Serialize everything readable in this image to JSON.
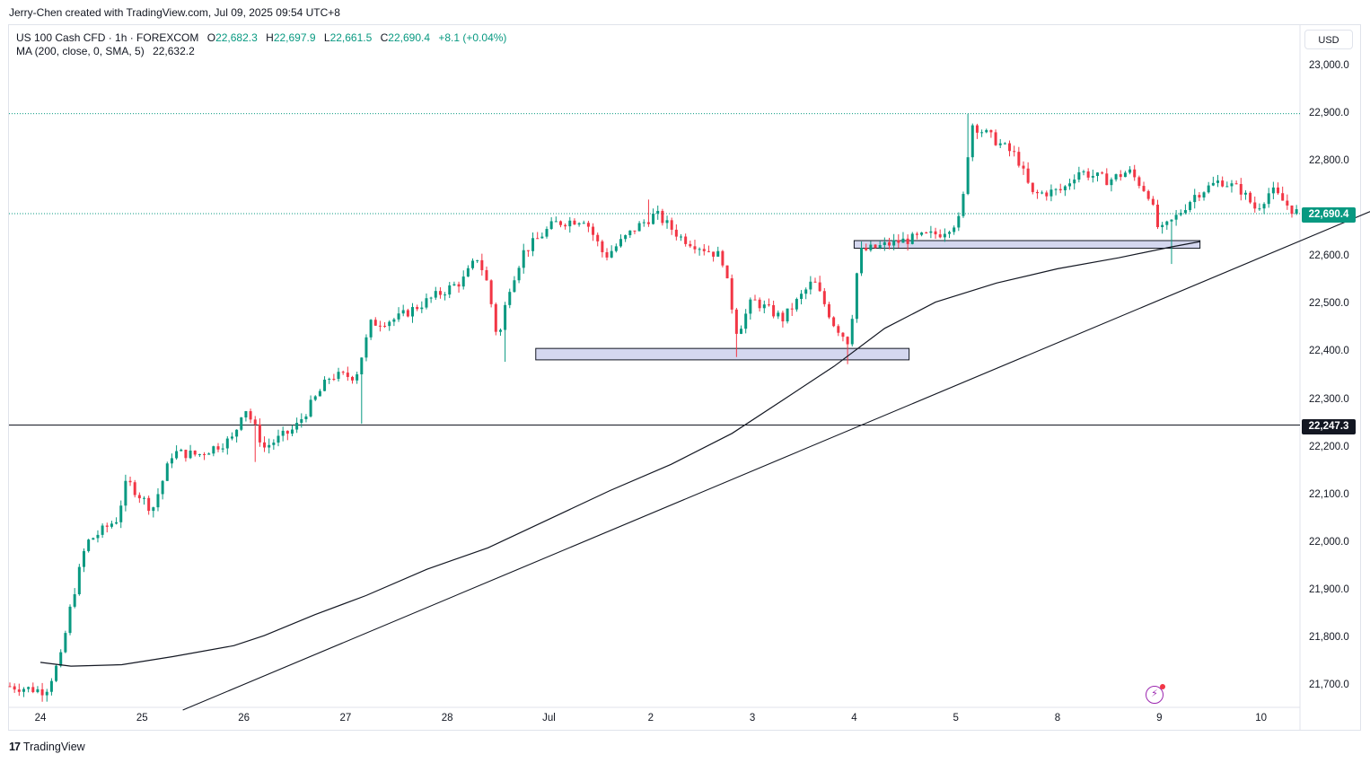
{
  "header": {
    "caption": "Jerry-Chen created with TradingView.com, Jul 09, 2025 09:54 UTC+8"
  },
  "legend": {
    "symbol": "US 100 Cash CFD · 1h · FOREXCOM",
    "o_label": "O",
    "o_value": "22,682.3",
    "h_label": "H",
    "h_value": "22,697.9",
    "l_label": "L",
    "l_value": "22,661.5",
    "c_label": "C",
    "c_value": "22,690.4",
    "change": "+8.1 (+0.04%)",
    "ma_label": "MA (200, close, 0, SMA, 5)",
    "ma_value": "22,632.2"
  },
  "currency": "USD",
  "price_badges": {
    "last": "22,690.4",
    "level": "22,247.3"
  },
  "y_axis": {
    "ticks": [
      {
        "value": 23000,
        "label": "23,000.0"
      },
      {
        "value": 22900,
        "label": "22,900.0"
      },
      {
        "value": 22800,
        "label": "22,800.0"
      },
      {
        "value": 22600,
        "label": "22,600.0"
      },
      {
        "value": 22500,
        "label": "22,500.0"
      },
      {
        "value": 22400,
        "label": "22,400.0"
      },
      {
        "value": 22300,
        "label": "22,300.0"
      },
      {
        "value": 22200,
        "label": "22,200.0"
      },
      {
        "value": 22100,
        "label": "22,100.0"
      },
      {
        "value": 22000,
        "label": "22,000.0"
      },
      {
        "value": 21900,
        "label": "21,900.0"
      },
      {
        "value": 21800,
        "label": "21,800.0"
      },
      {
        "value": 21700,
        "label": "21,700.0"
      }
    ]
  },
  "x_axis": {
    "ticks": [
      "24",
      "25",
      "26",
      "27",
      "28",
      "Jul",
      "2",
      "3",
      "4",
      "5",
      "8",
      "9",
      "10"
    ]
  },
  "footer": {
    "brand": "TradingView"
  },
  "colors": {
    "up": "#089981",
    "down": "#f23645",
    "ma": "#131722",
    "zone_fill": "#c5cae9",
    "zone_stroke": "#131722"
  },
  "chart_data": {
    "type": "candlestick",
    "title": "US 100 Cash CFD · 1h · FOREXCOM",
    "ylim": [
      21650,
      23060
    ],
    "last_price": 22690.4,
    "high_dotted": 22900,
    "horizontal_level": 22247.3,
    "trendline": {
      "from": {
        "x": 1.4,
        "y": 21650
      },
      "to": {
        "x": 13.8,
        "y": 22760
      }
    },
    "zones": [
      {
        "x0": 4.87,
        "x1": 8.54,
        "y0": 22384,
        "y1": 22408
      },
      {
        "x0": 8.0,
        "x1": 11.4,
        "y0": 22618,
        "y1": 22634
      }
    ],
    "ma200": [
      {
        "x": 0,
        "y": 21750
      },
      {
        "x": 0.3,
        "y": 21742
      },
      {
        "x": 0.8,
        "y": 21745
      },
      {
        "x": 1.3,
        "y": 21762
      },
      {
        "x": 1.9,
        "y": 21785
      },
      {
        "x": 2.2,
        "y": 21806
      },
      {
        "x": 2.7,
        "y": 21850
      },
      {
        "x": 3.2,
        "y": 21890
      },
      {
        "x": 3.8,
        "y": 21945
      },
      {
        "x": 4.4,
        "y": 21990
      },
      {
        "x": 5.0,
        "y": 22050
      },
      {
        "x": 5.6,
        "y": 22110
      },
      {
        "x": 6.2,
        "y": 22165
      },
      {
        "x": 6.8,
        "y": 22230
      },
      {
        "x": 7.3,
        "y": 22300
      },
      {
        "x": 7.8,
        "y": 22370
      },
      {
        "x": 8.3,
        "y": 22450
      },
      {
        "x": 8.8,
        "y": 22505
      },
      {
        "x": 9.4,
        "y": 22545
      },
      {
        "x": 10.0,
        "y": 22575
      },
      {
        "x": 10.6,
        "y": 22598
      },
      {
        "x": 11.1,
        "y": 22620
      },
      {
        "x": 11.4,
        "y": 22632
      }
    ],
    "anchors": [
      {
        "x": -0.3,
        "y": 21700
      },
      {
        "x": 0.05,
        "y": 21690
      },
      {
        "x": 0.2,
        "y": 21760
      },
      {
        "x": 0.3,
        "y": 21870
      },
      {
        "x": 0.45,
        "y": 22000
      },
      {
        "x": 0.75,
        "y": 22050
      },
      {
        "x": 0.85,
        "y": 22130
      },
      {
        "x": 1.1,
        "y": 22070
      },
      {
        "x": 1.3,
        "y": 22190
      },
      {
        "x": 1.55,
        "y": 22185
      },
      {
        "x": 1.9,
        "y": 22220
      },
      {
        "x": 2.0,
        "y": 22290
      },
      {
        "x": 2.2,
        "y": 22200
      },
      {
        "x": 2.5,
        "y": 22240
      },
      {
        "x": 2.85,
        "y": 22350
      },
      {
        "x": 3.1,
        "y": 22350
      },
      {
        "x": 3.25,
        "y": 22460
      },
      {
        "x": 3.5,
        "y": 22470
      },
      {
        "x": 3.9,
        "y": 22520
      },
      {
        "x": 4.15,
        "y": 22550
      },
      {
        "x": 4.3,
        "y": 22600
      },
      {
        "x": 4.4,
        "y": 22540
      },
      {
        "x": 4.5,
        "y": 22420
      },
      {
        "x": 4.6,
        "y": 22530
      },
      {
        "x": 4.75,
        "y": 22610
      },
      {
        "x": 5.05,
        "y": 22670
      },
      {
        "x": 5.35,
        "y": 22680
      },
      {
        "x": 5.55,
        "y": 22600
      },
      {
        "x": 5.85,
        "y": 22660
      },
      {
        "x": 6.05,
        "y": 22690
      },
      {
        "x": 6.3,
        "y": 22640
      },
      {
        "x": 6.7,
        "y": 22600
      },
      {
        "x": 6.85,
        "y": 22440
      },
      {
        "x": 7.0,
        "y": 22510
      },
      {
        "x": 7.3,
        "y": 22470
      },
      {
        "x": 7.6,
        "y": 22550
      },
      {
        "x": 7.8,
        "y": 22460
      },
      {
        "x": 7.95,
        "y": 22420
      },
      {
        "x": 8.05,
        "y": 22610
      },
      {
        "x": 8.4,
        "y": 22630
      },
      {
        "x": 8.85,
        "y": 22650
      },
      {
        "x": 9.05,
        "y": 22680
      },
      {
        "x": 9.15,
        "y": 22880
      },
      {
        "x": 9.35,
        "y": 22850
      },
      {
        "x": 9.6,
        "y": 22810
      },
      {
        "x": 9.75,
        "y": 22730
      },
      {
        "x": 10.05,
        "y": 22740
      },
      {
        "x": 10.2,
        "y": 22780
      },
      {
        "x": 10.5,
        "y": 22760
      },
      {
        "x": 10.7,
        "y": 22780
      },
      {
        "x": 10.9,
        "y": 22730
      },
      {
        "x": 11.0,
        "y": 22650
      },
      {
        "x": 11.15,
        "y": 22680
      },
      {
        "x": 11.35,
        "y": 22730
      },
      {
        "x": 11.6,
        "y": 22760
      },
      {
        "x": 11.8,
        "y": 22740
      },
      {
        "x": 11.95,
        "y": 22700
      },
      {
        "x": 12.1,
        "y": 22740
      },
      {
        "x": 12.3,
        "y": 22700
      },
      {
        "x": 12.38,
        "y": 22690
      }
    ],
    "wicks": [
      {
        "x": 4.55,
        "y": 22380
      },
      {
        "x": 6.85,
        "y": 22390
      },
      {
        "x": 7.95,
        "y": 22375
      },
      {
        "x": 11.1,
        "y": 22585
      },
      {
        "x": 3.15,
        "y": 22250
      },
      {
        "x": 2.1,
        "y": 22170
      },
      {
        "x": 9.1,
        "y": 22900
      },
      {
        "x": 6.0,
        "y": 22720
      }
    ]
  }
}
